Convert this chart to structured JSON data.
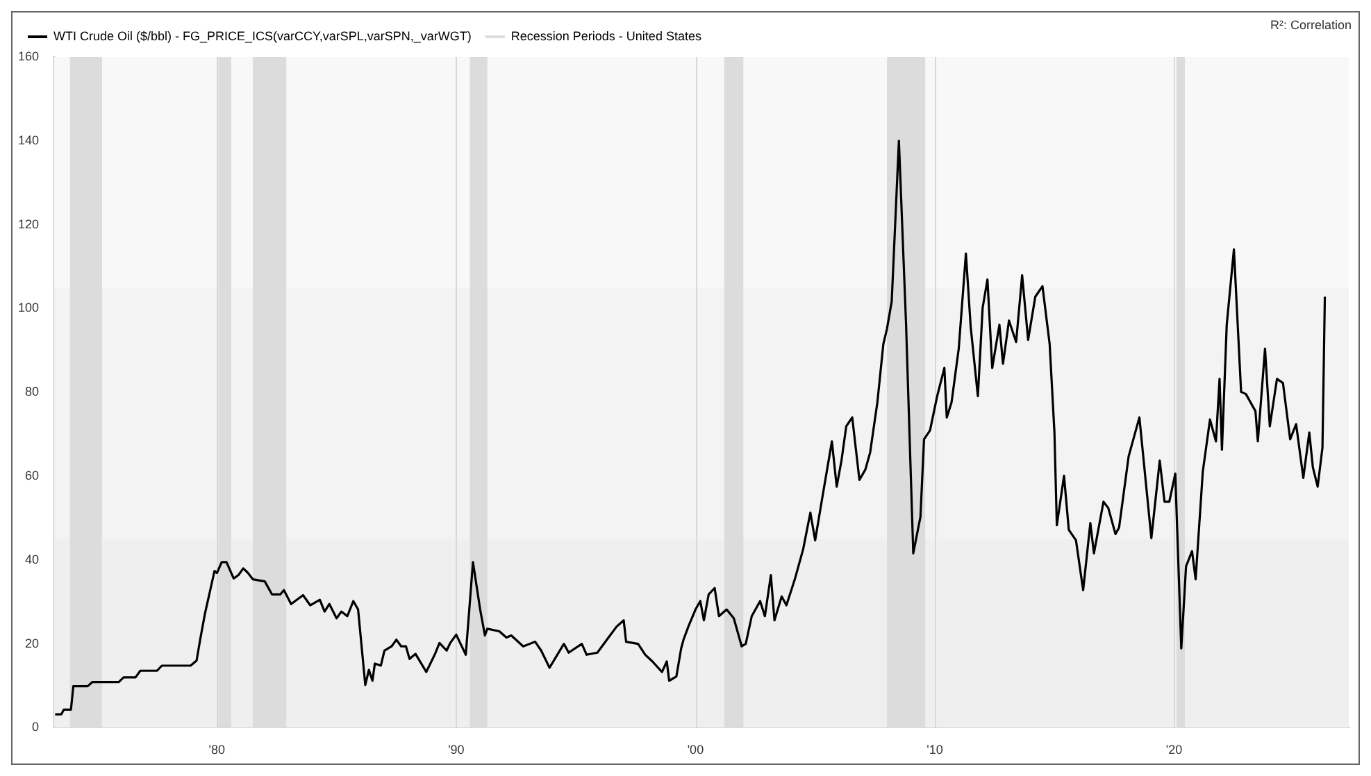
{
  "chart_data": {
    "type": "line",
    "x": [
      1973.24,
      1973.5,
      1973.6,
      1973.9,
      1974.0,
      1974.6,
      1974.8,
      1975.9,
      1976.1,
      1976.6,
      1976.8,
      1977.5,
      1977.7,
      1978.9,
      1979.15,
      1979.3,
      1979.5,
      1979.7,
      1979.9,
      1980.0,
      1980.2,
      1980.4,
      1980.7,
      1980.9,
      1981.1,
      1981.3,
      1981.5,
      1982.0,
      1982.3,
      1982.65,
      1982.8,
      1983.1,
      1983.6,
      1983.9,
      1984.3,
      1984.5,
      1984.7,
      1985.0,
      1985.2,
      1985.45,
      1985.7,
      1985.9,
      1986.2,
      1986.35,
      1986.5,
      1986.6,
      1986.85,
      1987.0,
      1987.3,
      1987.5,
      1987.7,
      1987.9,
      1988.05,
      1988.3,
      1988.75,
      1989.1,
      1989.3,
      1989.6,
      1989.75,
      1990.0,
      1990.4,
      1990.7,
      1991.0,
      1991.2,
      1991.3,
      1991.8,
      1992.1,
      1992.3,
      1992.8,
      1993.3,
      1993.55,
      1993.9,
      1994.5,
      1994.7,
      1995.25,
      1995.45,
      1995.9,
      1996.3,
      1996.7,
      1997.0,
      1997.1,
      1997.6,
      1997.9,
      1998.2,
      1998.6,
      1998.8,
      1998.9,
      1999.2,
      1999.4,
      1999.5,
      1999.7,
      2000.0,
      2000.2,
      2000.35,
      2000.55,
      2000.8,
      2000.98,
      2001.3,
      2001.6,
      2001.93,
      2002.1,
      2002.35,
      2002.7,
      2002.9,
      2003.15,
      2003.3,
      2003.6,
      2003.8,
      2004.15,
      2004.5,
      2004.8,
      2005.0,
      2005.3,
      2005.7,
      2005.9,
      2006.1,
      2006.3,
      2006.55,
      2006.85,
      2007.1,
      2007.3,
      2007.6,
      2007.85,
      2008.0,
      2008.2,
      2008.5,
      2008.8,
      2009.1,
      2009.4,
      2009.55,
      2009.8,
      2010.1,
      2010.4,
      2010.5,
      2010.7,
      2011.0,
      2011.3,
      2011.5,
      2011.8,
      2012.0,
      2012.2,
      2012.4,
      2012.7,
      2012.85,
      2013.1,
      2013.4,
      2013.65,
      2013.9,
      2014.2,
      2014.5,
      2014.8,
      2015.0,
      2015.1,
      2015.4,
      2015.6,
      2015.9,
      2016.2,
      2016.5,
      2016.65,
      2017.05,
      2017.25,
      2017.55,
      2017.7,
      2018.1,
      2018.55,
      2019.05,
      2019.4,
      2019.6,
      2019.8,
      2020.05,
      2020.3,
      2020.5,
      2020.75,
      2020.9,
      2021.2,
      2021.5,
      2021.75,
      2021.9,
      2022.0,
      2022.2,
      2022.5,
      2022.8,
      2023.0,
      2023.4,
      2023.5,
      2023.8,
      2024.0,
      2024.3,
      2024.55,
      2024.85,
      2025.1,
      2025.4,
      2025.65,
      2025.8,
      2026.0,
      2026.2,
      2026.3
    ],
    "series": [
      {
        "name": "WTI Crude Oil ($/bbl) - FG_PRICE_ICS(varCCY,varSPL,varSPN,_varWGT)",
        "color": "#000000",
        "values": [
          3.2,
          3.2,
          4.3,
          4.3,
          9.9,
          9.9,
          10.9,
          10.9,
          12.0,
          12.0,
          13.6,
          13.6,
          14.8,
          14.8,
          16.0,
          21,
          27.2,
          32.3,
          37.4,
          36.9,
          39.5,
          39.5,
          35.6,
          36.4,
          38,
          36.9,
          35.4,
          34.9,
          31.8,
          31.8,
          32.8,
          29.5,
          31.6,
          29.2,
          30.5,
          27.7,
          29.5,
          26.1,
          27.7,
          26.6,
          30.2,
          28.2,
          10.2,
          13.8,
          11.2,
          15.3,
          14.8,
          18.4,
          19.4,
          21,
          19.4,
          19.4,
          16.4,
          17.6,
          13.3,
          17.4,
          20.2,
          18.4,
          20.2,
          22.2,
          17.4,
          39.5,
          28.2,
          22,
          23.6,
          23,
          21.5,
          22,
          19.4,
          20.5,
          18.4,
          14.3,
          20,
          17.9,
          20,
          17.4,
          17.9,
          21,
          24.1,
          25.6,
          20.5,
          20,
          17.4,
          15.8,
          13.3,
          15.8,
          11.2,
          12.2,
          18.9,
          21,
          24.1,
          28.2,
          30.2,
          25.6,
          31.8,
          33.3,
          26.6,
          28.2,
          26.1,
          19.4,
          20,
          26.6,
          30.2,
          26.6,
          36.4,
          25.6,
          31.3,
          29.2,
          35.4,
          42.6,
          51.3,
          44.7,
          54.9,
          68.3,
          57.5,
          63.7,
          71.9,
          74,
          59.1,
          61.6,
          65.7,
          77.6,
          91.5,
          95.1,
          101.7,
          140,
          96.1,
          41.6,
          50.3,
          68.8,
          70.9,
          79.1,
          85.8,
          74,
          77.6,
          90.4,
          113.1,
          95.6,
          79.1,
          100.2,
          106.9,
          85.8,
          96.1,
          86.8,
          97.1,
          92,
          107.9,
          92.5,
          102.8,
          105.3,
          91.5,
          70.4,
          48.3,
          60.1,
          47.2,
          44.7,
          32.8,
          48.8,
          41.6,
          53.9,
          52.4,
          46.2,
          47.7,
          64.7,
          74,
          45.2,
          63.7,
          53.9,
          53.9,
          60.6,
          18.9,
          38.5,
          42.1,
          35.4,
          61.1,
          73.5,
          68.3,
          83.2,
          66.3,
          96.1,
          114.1,
          80.1,
          79.6,
          75.5,
          68.3,
          90.4,
          71.9,
          83.2,
          82.2,
          68.8,
          72.4,
          59.6,
          70.4,
          62.1,
          57.5,
          66.8,
          102.8
        ]
      }
    ],
    "xlim": [
      1973.2,
      2027.3
    ],
    "xticks": [
      {
        "value": 1980,
        "label": "'80"
      },
      {
        "value": 1990,
        "label": "'90"
      },
      {
        "value": 2000,
        "label": "'00"
      },
      {
        "value": 2010,
        "label": "'10"
      },
      {
        "value": 2020,
        "label": "'20"
      }
    ],
    "ylim": [
      0,
      160
    ],
    "yticks": [
      0,
      20,
      40,
      60,
      80,
      100,
      120,
      140,
      160
    ],
    "grid": "x",
    "legend": "top left",
    "marker": "none",
    "line_style": "solid",
    "bands": [
      {
        "axis": "y",
        "from": 105,
        "to": 160,
        "color": "#f8f8f8"
      },
      {
        "axis": "y",
        "from": 45,
        "to": 105,
        "color": "#f3f3f3"
      },
      {
        "axis": "y",
        "from": 0,
        "to": 45,
        "color": "#efefef"
      },
      {
        "axis": "x",
        "from": 1973.86,
        "to": 1975.2,
        "color": "#dcdcdc",
        "label": "Recession Periods - United States"
      },
      {
        "axis": "x",
        "from": 1980.06,
        "to": 1980.6,
        "color": "#dcdcdc"
      },
      {
        "axis": "x",
        "from": 1981.5,
        "to": 1982.9,
        "color": "#dcdcdc"
      },
      {
        "axis": "x",
        "from": 1990.57,
        "to": 1991.3,
        "color": "#dcdcdc"
      },
      {
        "axis": "x",
        "from": 2001.2,
        "to": 2002.0,
        "color": "#dcdcdc"
      },
      {
        "axis": "x",
        "from": 2008.0,
        "to": 2009.6,
        "color": "#dcdcdc"
      },
      {
        "axis": "x",
        "from": 2020.1,
        "to": 2020.45,
        "color": "#dcdcdc"
      }
    ],
    "annotations": [
      "R²: Correlation"
    ]
  }
}
